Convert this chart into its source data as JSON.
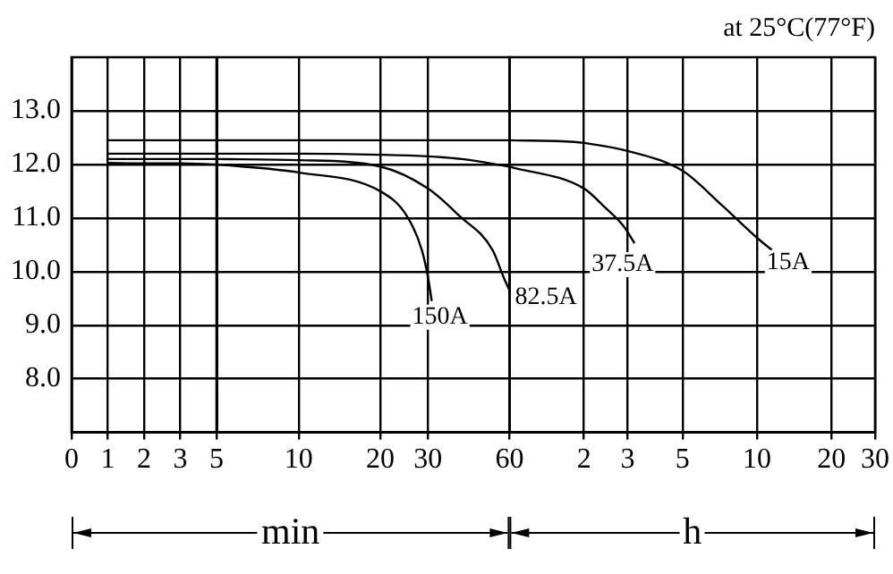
{
  "chart_data": [
    {
      "type": "line",
      "categories": [
        "0",
        "1",
        "2",
        "3",
        "5"
      ],
      "ylim": [
        7,
        14
      ],
      "yticks": [
        {
          "value": 8,
          "label": "8.0"
        },
        {
          "value": 9,
          "label": "9.0"
        },
        {
          "value": 10,
          "label": "10.0"
        },
        {
          "value": 11,
          "label": "11.0"
        },
        {
          "value": 12,
          "label": "12.0"
        },
        {
          "value": 13,
          "label": "13.0"
        }
      ],
      "grid": true,
      "legend": false,
      "line_style": "solid",
      "series": [
        {
          "color": "#000000",
          "values": [
            null,
            12.45,
            12.45,
            12.45,
            12.45
          ]
        },
        {
          "color": "#000000",
          "values": [
            null,
            12.2,
            12.2,
            12.2,
            12.2
          ]
        },
        {
          "color": "#000000",
          "values": [
            null,
            12.1,
            12.1,
            12.1,
            12.1
          ]
        },
        {
          "color": "#000000",
          "values": [
            null,
            12.03,
            12.02,
            12.02,
            12.0
          ]
        }
      ]
    },
    {
      "type": "line",
      "xlim": [
        5,
        60
      ],
      "xticks": [
        10,
        20,
        30,
        60
      ],
      "log": "x",
      "ylim": [
        7,
        14
      ],
      "yticks": [
        8,
        9,
        10,
        11,
        12,
        13
      ],
      "tick_labels": "x",
      "grid": true,
      "legend": false,
      "line_style": "solid",
      "annotations": [
        "min"
      ],
      "series": [
        {
          "color": "#000000",
          "x": [
            5,
            30,
            60
          ],
          "values": [
            12.45,
            12.45,
            12.45
          ]
        },
        {
          "color": "#000000",
          "x": [
            5,
            10,
            20,
            30,
            40,
            60
          ],
          "values": [
            12.2,
            12.2,
            12.18,
            12.15,
            12.1,
            11.96
          ]
        },
        {
          "name": "82.5A",
          "color": "#000000",
          "x": [
            5,
            10,
            20,
            30,
            39,
            52,
            57,
            60
          ],
          "values": [
            12.1,
            12.08,
            11.96,
            11.55,
            11.05,
            10.4,
            9.9,
            9.65
          ]
        },
        {
          "name": "150A",
          "color": "#000000",
          "x": [
            5,
            10,
            20,
            25,
            28.5,
            30,
            31
          ],
          "values": [
            12.0,
            11.85,
            11.5,
            11.05,
            10.4,
            9.9,
            9.45
          ]
        }
      ]
    },
    {
      "type": "line",
      "title": "at 25°C(77°F)",
      "xlim": [
        1,
        30
      ],
      "xticks": [
        2,
        3,
        5,
        10,
        20,
        30
      ],
      "log": "x",
      "ylim": [
        7,
        14
      ],
      "yticks": [
        8,
        9,
        10,
        11,
        12,
        13
      ],
      "tick_labels": "x",
      "grid": true,
      "legend": false,
      "line_style": "solid",
      "annotations": [
        "h"
      ],
      "series": [
        {
          "name": "15A",
          "color": "#000000",
          "x": [
            1,
            1.83,
            2,
            3,
            5,
            7.17,
            10,
            11.5
          ],
          "values": [
            12.45,
            12.42,
            12.4,
            12.25,
            11.88,
            11.25,
            10.63,
            10.4
          ]
        },
        {
          "name": "37.5A",
          "color": "#000000",
          "x": [
            1,
            2,
            2.43,
            2.9,
            3.2
          ],
          "values": [
            11.96,
            11.55,
            11.2,
            10.84,
            10.53
          ]
        }
      ]
    }
  ]
}
